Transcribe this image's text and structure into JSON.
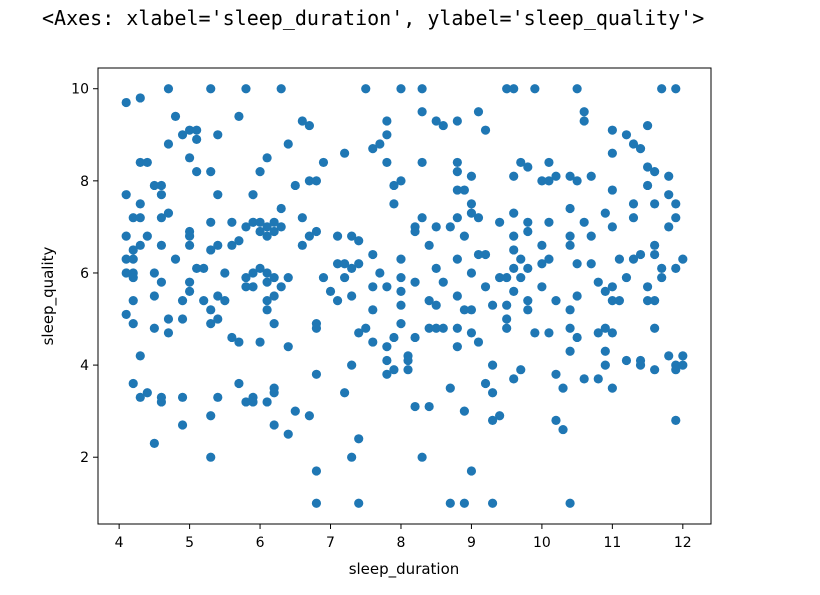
{
  "output_repr": "<Axes: xlabel='sleep_duration', ylabel='sleep_quality'>",
  "chart_data": {
    "type": "scatter",
    "xlabel": "sleep_duration",
    "ylabel": "sleep_quality",
    "xlim": [
      3.7,
      12.4
    ],
    "ylim": [
      0.55,
      10.45
    ],
    "xticks": [
      4,
      5,
      6,
      7,
      8,
      9,
      10,
      11,
      12
    ],
    "yticks": [
      2,
      4,
      6,
      8,
      10
    ],
    "grid": false,
    "marker_color": "#1f77b4",
    "points": [
      [
        4.1,
        9.7
      ],
      [
        4.3,
        9.8
      ],
      [
        4.1,
        7.7
      ],
      [
        4.3,
        7.5
      ],
      [
        4.3,
        8.4
      ],
      [
        4.4,
        8.4
      ],
      [
        4.1,
        6.8
      ],
      [
        4.2,
        7.2
      ],
      [
        4.3,
        7.2
      ],
      [
        4.3,
        6.6
      ],
      [
        4.4,
        6.8
      ],
      [
        4.2,
        6.5
      ],
      [
        4.1,
        6.3
      ],
      [
        4.2,
        6.3
      ],
      [
        4.1,
        6.0
      ],
      [
        4.2,
        6.0
      ],
      [
        4.2,
        5.9
      ],
      [
        4.2,
        5.4
      ],
      [
        4.1,
        5.1
      ],
      [
        4.2,
        4.9
      ],
      [
        4.3,
        4.2
      ],
      [
        4.2,
        3.6
      ],
      [
        4.3,
        3.3
      ],
      [
        4.4,
        3.4
      ],
      [
        4.5,
        2.3
      ],
      [
        4.5,
        4.8
      ],
      [
        4.5,
        5.5
      ],
      [
        4.5,
        6.0
      ],
      [
        4.6,
        5.8
      ],
      [
        4.5,
        7.9
      ],
      [
        4.6,
        7.9
      ],
      [
        4.6,
        7.7
      ],
      [
        4.6,
        7.2
      ],
      [
        4.6,
        6.6
      ],
      [
        4.6,
        3.2
      ],
      [
        4.6,
        3.3
      ],
      [
        4.7,
        10.0
      ],
      [
        4.7,
        8.8
      ],
      [
        4.7,
        7.3
      ],
      [
        4.7,
        5.0
      ],
      [
        4.7,
        4.7
      ],
      [
        4.8,
        9.4
      ],
      [
        4.8,
        6.3
      ],
      [
        4.9,
        9.0
      ],
      [
        4.9,
        5.4
      ],
      [
        4.9,
        5.0
      ],
      [
        4.9,
        3.3
      ],
      [
        4.9,
        2.7
      ],
      [
        5.0,
        9.1
      ],
      [
        5.0,
        8.5
      ],
      [
        5.0,
        6.9
      ],
      [
        5.0,
        6.8
      ],
      [
        5.0,
        6.6
      ],
      [
        5.0,
        5.8
      ],
      [
        5.0,
        5.6
      ],
      [
        5.1,
        8.9
      ],
      [
        5.1,
        8.2
      ],
      [
        5.1,
        6.1
      ],
      [
        5.1,
        9.1
      ],
      [
        5.2,
        6.1
      ],
      [
        5.2,
        5.4
      ],
      [
        5.3,
        10.0
      ],
      [
        5.3,
        8.2
      ],
      [
        5.3,
        7.1
      ],
      [
        5.3,
        6.5
      ],
      [
        5.3,
        5.2
      ],
      [
        5.3,
        4.9
      ],
      [
        5.3,
        2.9
      ],
      [
        5.3,
        2.0
      ],
      [
        5.4,
        9.0
      ],
      [
        5.4,
        7.7
      ],
      [
        5.4,
        6.6
      ],
      [
        5.4,
        5.5
      ],
      [
        5.4,
        5.0
      ],
      [
        5.4,
        3.3
      ],
      [
        5.5,
        6.0
      ],
      [
        5.5,
        5.4
      ],
      [
        5.6,
        7.1
      ],
      [
        5.6,
        6.6
      ],
      [
        5.6,
        4.6
      ],
      [
        5.7,
        9.4
      ],
      [
        5.7,
        6.7
      ],
      [
        5.7,
        4.5
      ],
      [
        5.7,
        3.6
      ],
      [
        5.8,
        7.0
      ],
      [
        5.8,
        5.9
      ],
      [
        5.8,
        5.7
      ],
      [
        5.8,
        3.2
      ],
      [
        5.8,
        10.0
      ],
      [
        5.9,
        7.7
      ],
      [
        5.9,
        7.1
      ],
      [
        5.9,
        6.0
      ],
      [
        5.9,
        5.7
      ],
      [
        5.9,
        3.2
      ],
      [
        5.9,
        3.3
      ],
      [
        6.0,
        8.2
      ],
      [
        6.0,
        7.1
      ],
      [
        6.0,
        6.9
      ],
      [
        6.0,
        6.1
      ],
      [
        6.0,
        4.5
      ],
      [
        6.1,
        8.5
      ],
      [
        6.1,
        7.0
      ],
      [
        6.1,
        6.8
      ],
      [
        6.1,
        6.0
      ],
      [
        6.1,
        5.8
      ],
      [
        6.1,
        5.4
      ],
      [
        6.1,
        5.2
      ],
      [
        6.1,
        3.2
      ],
      [
        6.2,
        7.1
      ],
      [
        6.2,
        6.9
      ],
      [
        6.2,
        5.9
      ],
      [
        6.2,
        5.5
      ],
      [
        6.2,
        4.9
      ],
      [
        6.2,
        3.5
      ],
      [
        6.2,
        3.4
      ],
      [
        6.2,
        2.7
      ],
      [
        6.3,
        10.0
      ],
      [
        6.3,
        7.4
      ],
      [
        6.3,
        7.0
      ],
      [
        6.3,
        5.7
      ],
      [
        6.4,
        8.8
      ],
      [
        6.4,
        5.9
      ],
      [
        6.4,
        4.4
      ],
      [
        6.4,
        2.5
      ],
      [
        6.5,
        7.9
      ],
      [
        6.5,
        3.0
      ],
      [
        6.6,
        9.3
      ],
      [
        6.6,
        7.2
      ],
      [
        6.6,
        6.6
      ],
      [
        6.7,
        9.2
      ],
      [
        6.7,
        8.0
      ],
      [
        6.7,
        6.8
      ],
      [
        6.7,
        2.9
      ],
      [
        6.8,
        8.0
      ],
      [
        6.8,
        6.9
      ],
      [
        6.8,
        4.9
      ],
      [
        6.8,
        4.8
      ],
      [
        6.8,
        3.8
      ],
      [
        6.8,
        1.7
      ],
      [
        6.8,
        1.0
      ],
      [
        6.9,
        8.4
      ],
      [
        6.9,
        5.9
      ],
      [
        7.0,
        5.6
      ],
      [
        7.1,
        6.8
      ],
      [
        7.1,
        6.2
      ],
      [
        7.1,
        5.4
      ],
      [
        7.2,
        8.6
      ],
      [
        7.2,
        6.2
      ],
      [
        7.2,
        5.9
      ],
      [
        7.2,
        3.4
      ],
      [
        7.3,
        6.8
      ],
      [
        7.3,
        6.1
      ],
      [
        7.3,
        5.5
      ],
      [
        7.3,
        4.0
      ],
      [
        7.3,
        2.0
      ],
      [
        7.4,
        6.7
      ],
      [
        7.4,
        6.2
      ],
      [
        7.4,
        4.7
      ],
      [
        7.4,
        2.4
      ],
      [
        7.4,
        1.0
      ],
      [
        7.5,
        10.0
      ],
      [
        7.5,
        4.8
      ],
      [
        7.6,
        8.7
      ],
      [
        7.6,
        6.4
      ],
      [
        7.6,
        5.7
      ],
      [
        7.6,
        5.2
      ],
      [
        7.6,
        4.5
      ],
      [
        7.7,
        8.8
      ],
      [
        7.7,
        6.0
      ],
      [
        7.8,
        9.3
      ],
      [
        7.8,
        9.0
      ],
      [
        7.8,
        8.4
      ],
      [
        7.8,
        5.7
      ],
      [
        7.8,
        4.4
      ],
      [
        7.8,
        4.1
      ],
      [
        7.8,
        3.8
      ],
      [
        7.9,
        7.9
      ],
      [
        7.9,
        7.5
      ],
      [
        7.9,
        4.6
      ],
      [
        7.9,
        3.9
      ],
      [
        8.0,
        10.0
      ],
      [
        8.0,
        8.0
      ],
      [
        8.0,
        6.3
      ],
      [
        8.0,
        5.9
      ],
      [
        8.0,
        5.6
      ],
      [
        8.0,
        5.3
      ],
      [
        8.0,
        4.9
      ],
      [
        8.1,
        4.2
      ],
      [
        8.1,
        4.1
      ],
      [
        8.1,
        3.9
      ],
      [
        8.2,
        7.0
      ],
      [
        8.2,
        6.9
      ],
      [
        8.2,
        5.8
      ],
      [
        8.2,
        4.6
      ],
      [
        8.2,
        3.1
      ],
      [
        8.3,
        10.0
      ],
      [
        8.3,
        9.5
      ],
      [
        8.3,
        8.4
      ],
      [
        8.3,
        7.2
      ],
      [
        8.3,
        2.0
      ],
      [
        8.4,
        6.6
      ],
      [
        8.4,
        5.4
      ],
      [
        8.4,
        4.8
      ],
      [
        8.4,
        3.1
      ],
      [
        8.5,
        9.3
      ],
      [
        8.5,
        7.0
      ],
      [
        8.5,
        6.1
      ],
      [
        8.5,
        5.3
      ],
      [
        8.5,
        4.8
      ],
      [
        8.6,
        5.8
      ],
      [
        8.6,
        4.8
      ],
      [
        8.6,
        9.2
      ],
      [
        8.7,
        7.0
      ],
      [
        8.7,
        3.5
      ],
      [
        8.7,
        1.0
      ],
      [
        8.8,
        9.3
      ],
      [
        8.8,
        8.4
      ],
      [
        8.8,
        8.2
      ],
      [
        8.8,
        7.8
      ],
      [
        8.8,
        7.2
      ],
      [
        8.8,
        6.3
      ],
      [
        8.8,
        5.5
      ],
      [
        8.8,
        4.8
      ],
      [
        8.8,
        4.4
      ],
      [
        8.9,
        7.8
      ],
      [
        8.9,
        6.8
      ],
      [
        8.9,
        5.2
      ],
      [
        8.9,
        3.0
      ],
      [
        8.9,
        1.0
      ],
      [
        9.0,
        8.1
      ],
      [
        9.0,
        7.5
      ],
      [
        9.0,
        7.3
      ],
      [
        9.0,
        6.0
      ],
      [
        9.0,
        5.2
      ],
      [
        9.0,
        4.7
      ],
      [
        9.0,
        1.7
      ],
      [
        9.1,
        9.5
      ],
      [
        9.1,
        7.2
      ],
      [
        9.1,
        6.4
      ],
      [
        9.1,
        4.5
      ],
      [
        9.2,
        9.1
      ],
      [
        9.2,
        6.4
      ],
      [
        9.2,
        3.6
      ],
      [
        9.2,
        5.7
      ],
      [
        9.3,
        4.0
      ],
      [
        9.3,
        3.4
      ],
      [
        9.3,
        2.8
      ],
      [
        9.3,
        1.0
      ],
      [
        9.3,
        5.3
      ],
      [
        9.4,
        7.1
      ],
      [
        9.4,
        5.9
      ],
      [
        9.4,
        2.9
      ],
      [
        9.5,
        10.0
      ],
      [
        9.5,
        5.9
      ],
      [
        9.5,
        5.3
      ],
      [
        9.5,
        5.0
      ],
      [
        9.5,
        4.8
      ],
      [
        9.6,
        10.0
      ],
      [
        9.6,
        8.1
      ],
      [
        9.6,
        7.3
      ],
      [
        9.6,
        6.8
      ],
      [
        9.6,
        6.5
      ],
      [
        9.6,
        6.1
      ],
      [
        9.6,
        5.6
      ],
      [
        9.6,
        3.7
      ],
      [
        9.7,
        8.4
      ],
      [
        9.7,
        6.3
      ],
      [
        9.7,
        5.9
      ],
      [
        9.7,
        3.9
      ],
      [
        9.8,
        8.3
      ],
      [
        9.8,
        7.1
      ],
      [
        9.8,
        6.9
      ],
      [
        9.8,
        6.1
      ],
      [
        9.8,
        5.4
      ],
      [
        9.8,
        5.2
      ],
      [
        9.9,
        10.0
      ],
      [
        9.9,
        4.7
      ],
      [
        10.0,
        8.0
      ],
      [
        10.0,
        6.6
      ],
      [
        10.0,
        6.2
      ],
      [
        10.0,
        5.7
      ],
      [
        10.1,
        8.4
      ],
      [
        10.1,
        8.0
      ],
      [
        10.1,
        7.1
      ],
      [
        10.1,
        6.3
      ],
      [
        10.1,
        4.7
      ],
      [
        10.2,
        8.1
      ],
      [
        10.2,
        5.4
      ],
      [
        10.2,
        3.8
      ],
      [
        10.2,
        2.8
      ],
      [
        10.3,
        3.5
      ],
      [
        10.3,
        2.6
      ],
      [
        10.4,
        8.1
      ],
      [
        10.4,
        7.4
      ],
      [
        10.4,
        6.8
      ],
      [
        10.4,
        6.6
      ],
      [
        10.4,
        5.2
      ],
      [
        10.4,
        4.8
      ],
      [
        10.4,
        4.3
      ],
      [
        10.4,
        1.0
      ],
      [
        10.5,
        10.0
      ],
      [
        10.5,
        8.0
      ],
      [
        10.5,
        6.2
      ],
      [
        10.5,
        5.5
      ],
      [
        10.5,
        4.6
      ],
      [
        10.6,
        9.5
      ],
      [
        10.6,
        9.3
      ],
      [
        10.6,
        7.1
      ],
      [
        10.6,
        3.7
      ],
      [
        10.7,
        8.1
      ],
      [
        10.7,
        6.8
      ],
      [
        10.7,
        6.2
      ],
      [
        10.8,
        5.8
      ],
      [
        10.8,
        4.7
      ],
      [
        10.8,
        3.7
      ],
      [
        10.9,
        7.3
      ],
      [
        10.9,
        5.6
      ],
      [
        10.9,
        4.8
      ],
      [
        10.9,
        4.3
      ],
      [
        10.9,
        4.0
      ],
      [
        11.0,
        9.1
      ],
      [
        11.0,
        8.6
      ],
      [
        11.0,
        7.8
      ],
      [
        11.0,
        7.0
      ],
      [
        11.0,
        5.7
      ],
      [
        11.0,
        5.4
      ],
      [
        11.0,
        4.7
      ],
      [
        11.0,
        3.5
      ],
      [
        11.1,
        6.3
      ],
      [
        11.1,
        5.4
      ],
      [
        11.2,
        9.0
      ],
      [
        11.2,
        5.9
      ],
      [
        11.2,
        4.1
      ],
      [
        11.3,
        8.8
      ],
      [
        11.3,
        7.5
      ],
      [
        11.3,
        7.2
      ],
      [
        11.3,
        6.3
      ],
      [
        11.4,
        8.7
      ],
      [
        11.4,
        6.4
      ],
      [
        11.4,
        4.1
      ],
      [
        11.4,
        4.0
      ],
      [
        11.5,
        9.2
      ],
      [
        11.5,
        8.3
      ],
      [
        11.5,
        7.9
      ],
      [
        11.5,
        5.7
      ],
      [
        11.5,
        5.4
      ],
      [
        11.6,
        8.2
      ],
      [
        11.6,
        7.5
      ],
      [
        11.6,
        6.6
      ],
      [
        11.6,
        6.4
      ],
      [
        11.6,
        5.4
      ],
      [
        11.6,
        4.8
      ],
      [
        11.6,
        3.9
      ],
      [
        11.7,
        10.0
      ],
      [
        11.7,
        6.1
      ],
      [
        11.7,
        5.9
      ],
      [
        11.8,
        8.1
      ],
      [
        11.8,
        7.7
      ],
      [
        11.8,
        7.0
      ],
      [
        11.8,
        4.2
      ],
      [
        11.9,
        10.0
      ],
      [
        11.9,
        7.5
      ],
      [
        11.9,
        7.2
      ],
      [
        11.9,
        6.1
      ],
      [
        11.9,
        4.0
      ],
      [
        11.9,
        3.9
      ],
      [
        11.9,
        2.8
      ],
      [
        12.0,
        6.3
      ],
      [
        12.0,
        4.2
      ],
      [
        12.0,
        4.0
      ]
    ]
  }
}
